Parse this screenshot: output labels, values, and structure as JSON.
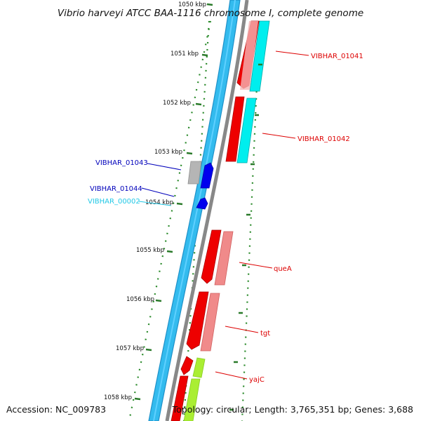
{
  "title": "Vibrio harveyi ATCC BAA-1116 chromosome I, complete genome",
  "footer": {
    "accession": "Accession: NC_009783",
    "topology": "Topology: circular; Length: 3,765,351 bp; Genes: 3,688"
  },
  "tick_labels": [
    "1050 kbp",
    "1051 kbp",
    "1052 kbp",
    "1053 kbp",
    "1054 kbp",
    "1055 kbp",
    "1056 kbp",
    "1057 kbp",
    "1058 kbp"
  ],
  "genes": [
    {
      "name": "VIBHAR_01041",
      "color": "#dd0000"
    },
    {
      "name": "VIBHAR_01042",
      "color": "#dd0000"
    },
    {
      "name": "VIBHAR_01043",
      "color": "#0000bb"
    },
    {
      "name": "VIBHAR_01044",
      "color": "#0000bb"
    },
    {
      "name": "VIBHAR_00002",
      "color": "#22c8e6"
    },
    {
      "name": "queA",
      "color": "#dd0000"
    },
    {
      "name": "tgt",
      "color": "#dd0000"
    },
    {
      "name": "yajC",
      "color": "#dd0000"
    }
  ],
  "colors": {
    "backbone": "#33bbee",
    "backbone_edge": "#1e90c8",
    "axis": "#888888",
    "tick": "#2a7a2a",
    "cds_forward": "#ee0000",
    "cds_reverse": "#0000ee",
    "rna": "#00eeee",
    "cog_pink": "#f08a8a",
    "cog_green": "#aaee33",
    "cog_grey": "#b5b5b5"
  }
}
